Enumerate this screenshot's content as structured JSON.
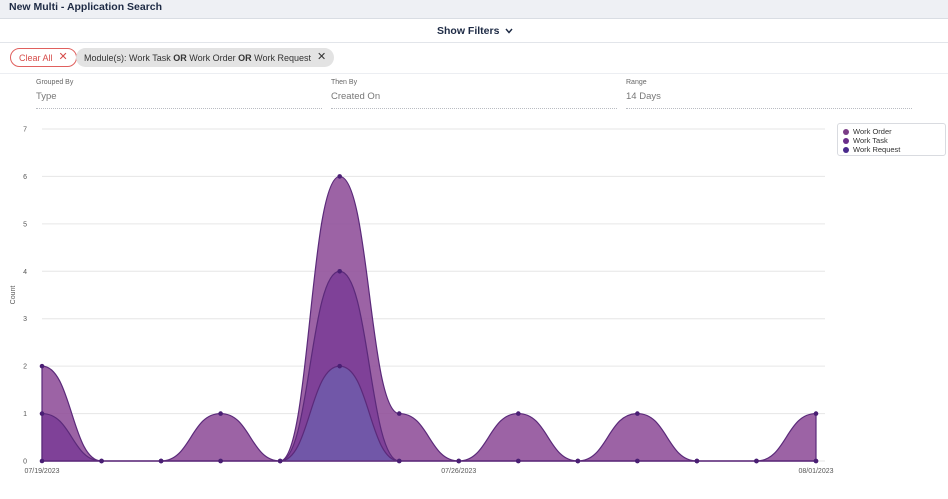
{
  "app": {
    "title": "New Multi - Application Search"
  },
  "filters": {
    "show_filters_label": "Show Filters",
    "clear_all_label": "Clear All",
    "module_chip": {
      "prefix": "Module(s): ",
      "items": [
        "Work Task",
        "Work Order",
        "Work Request"
      ],
      "joiner": "OR"
    }
  },
  "grouping": {
    "grouped_by": {
      "label": "Grouped By",
      "value": "Type"
    },
    "then_by": {
      "label": "Then By",
      "value": "Created On"
    },
    "range": {
      "label": "Range",
      "value": "14 Days"
    }
  },
  "colors": {
    "work_order": "#7a3d86",
    "work_task": "#6a2e8a",
    "work_request": "#4a2a8c"
  },
  "chart_data": {
    "type": "area",
    "title": "",
    "xlabel": "",
    "ylabel": "Count",
    "ylim": [
      0,
      7
    ],
    "yticks": [
      0,
      1,
      2,
      3,
      4,
      5,
      6,
      7
    ],
    "x": [
      "07/19/2023",
      "07/20/2023",
      "07/21/2023",
      "07/22/2023",
      "07/23/2023",
      "07/24/2023",
      "07/25/2023",
      "07/26/2023",
      "07/27/2023",
      "07/28/2023",
      "07/29/2023",
      "07/30/2023",
      "07/31/2023",
      "08/01/2023"
    ],
    "xtick_labels": [
      "07/19/2023",
      "07/26/2023",
      "08/01/2023"
    ],
    "stacked": true,
    "grid": true,
    "legend_position": "top-right",
    "series": [
      {
        "name": "Work Order",
        "values": [
          1,
          0,
          0,
          1,
          0,
          2,
          1,
          0,
          1,
          0,
          1,
          0,
          0,
          1
        ],
        "color": "#8e4d98"
      },
      {
        "name": "Work Task",
        "values": [
          1,
          0,
          0,
          0,
          0,
          2,
          0,
          0,
          0,
          0,
          0,
          0,
          0,
          0
        ],
        "color": "#7b3c96"
      },
      {
        "name": "Work Request",
        "values": [
          0,
          0,
          0,
          0,
          0,
          2,
          0,
          0,
          0,
          0,
          0,
          0,
          0,
          0
        ],
        "color": "#6f5aaa"
      }
    ]
  }
}
